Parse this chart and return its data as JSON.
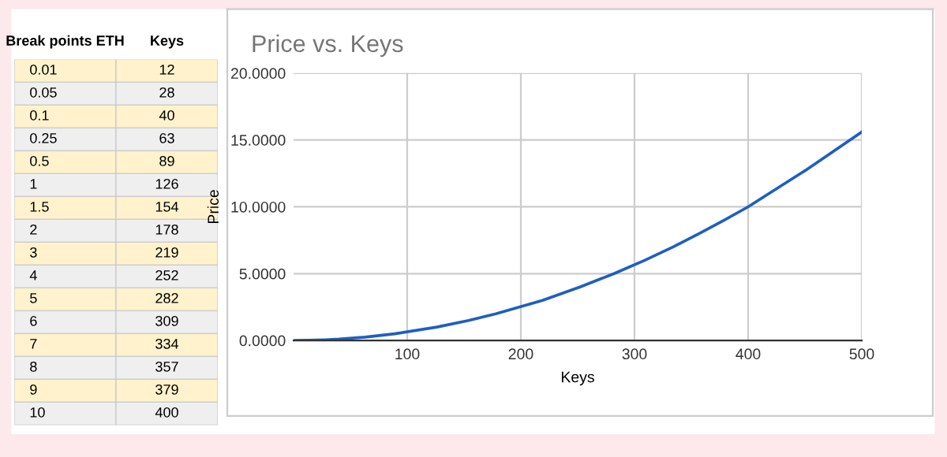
{
  "chart_data": [
    {
      "type": "heatmap",
      "categories": [
        "Break points ETH",
        "Keys"
      ],
      "y_categories": [
        null,
        null,
        null,
        null,
        null,
        null,
        null,
        null,
        null,
        null,
        null,
        null,
        null,
        null,
        null,
        null
      ],
      "cells": [
        [
          0.01,
          12
        ],
        [
          0.05,
          28
        ],
        [
          0.1,
          40
        ],
        [
          0.25,
          63
        ],
        [
          0.5,
          89
        ],
        [
          1,
          126
        ],
        [
          1.5,
          154
        ],
        [
          2,
          178
        ],
        [
          3,
          219
        ],
        [
          4,
          252
        ],
        [
          5,
          282
        ],
        [
          6,
          309
        ],
        [
          7,
          334
        ],
        [
          8,
          357
        ],
        [
          9,
          379
        ],
        [
          10,
          400
        ]
      ],
      "colors": [
        "#fff2cc",
        "#efefef"
      ],
      "data_labels": true
    },
    {
      "type": "line",
      "title": "Price vs. Keys",
      "xlabel": "Keys",
      "ylabel": "Price",
      "x": [
        0,
        12,
        28,
        40,
        63,
        89,
        126,
        154,
        178,
        219,
        252,
        282,
        309,
        334,
        357,
        379,
        400,
        450,
        500
      ],
      "series": [
        {
          "color": "#1f5fbf",
          "values": [
            0,
            0.01,
            0.05,
            0.1,
            0.25,
            0.5,
            1,
            1.5,
            2,
            3,
            4,
            5,
            6,
            7,
            8,
            9,
            10,
            12.7,
            15.6
          ]
        }
      ],
      "xlim": [
        0,
        500
      ],
      "xticks": [
        100,
        200,
        300,
        400,
        500
      ],
      "ylim": [
        0,
        20
      ],
      "yticks": [
        {
          "value": 0,
          "label": "0.0000"
        },
        {
          "value": 5,
          "label": "5.0000"
        },
        {
          "value": 10,
          "label": "10.0000"
        },
        {
          "value": 15,
          "label": "15.0000"
        },
        {
          "value": 20,
          "label": "20.0000"
        }
      ],
      "grid": true,
      "marker": "none",
      "line_style": "solid"
    }
  ]
}
